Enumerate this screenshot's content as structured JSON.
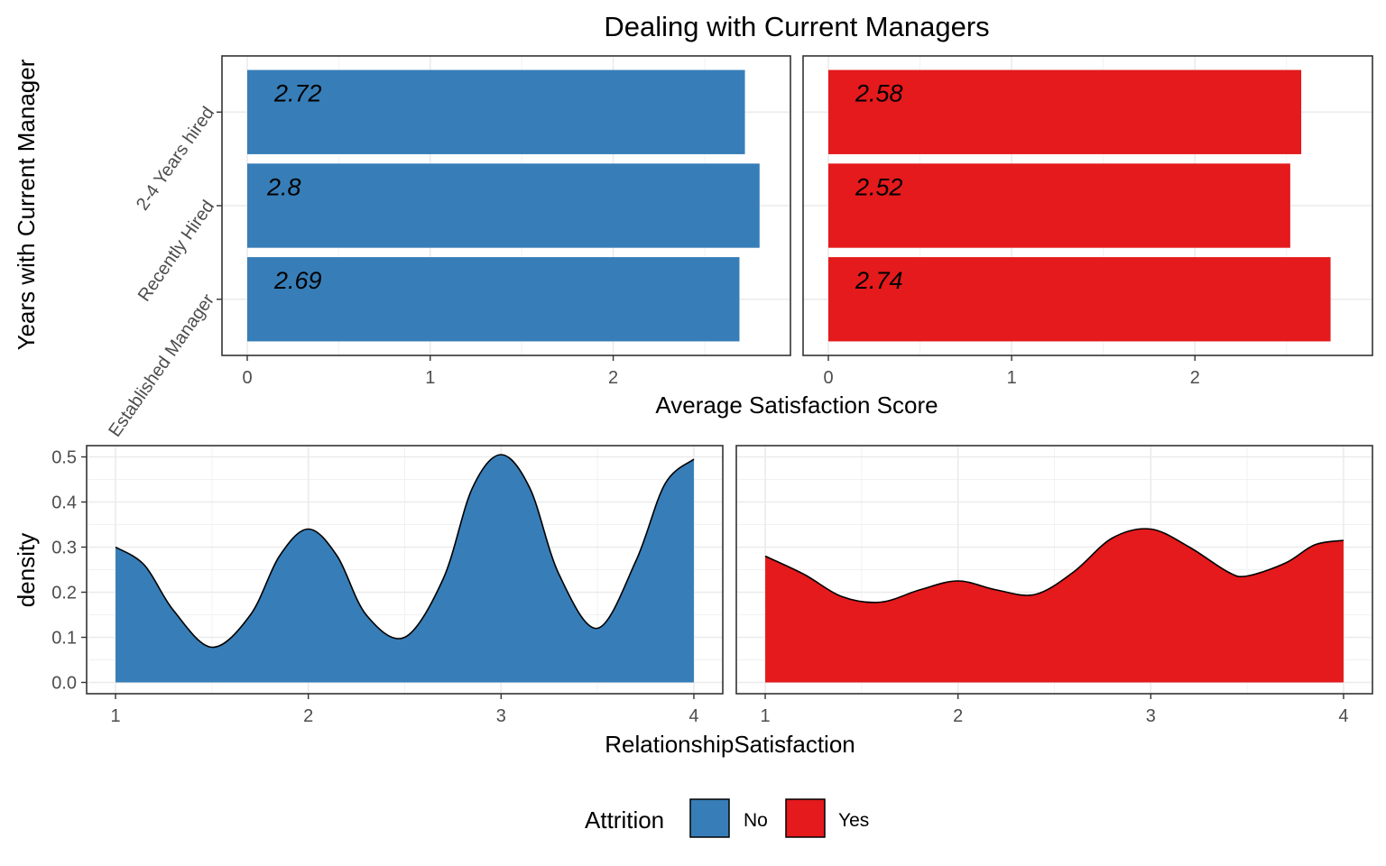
{
  "chart_data": [
    {
      "type": "bar",
      "orientation": "horizontal",
      "title": "Dealing with Current Managers",
      "xlabel": "Average Satisfaction Score",
      "ylabel": "Years with Current Manager",
      "categories": [
        "Established Manager",
        "Recently Hired",
        "2-4 Years hired"
      ],
      "xlim": [
        0,
        2.88
      ],
      "xticks": [
        0,
        1,
        2
      ],
      "grid": true,
      "panels": [
        {
          "group": "No",
          "color": "#377eb8",
          "values": [
            2.69,
            2.8,
            2.72
          ],
          "labels": [
            "2.69",
            "2.8",
            "2.72"
          ]
        },
        {
          "group": "Yes",
          "color": "#e41a1c",
          "values": [
            2.74,
            2.52,
            2.58
          ],
          "labels": [
            "2.74",
            "2.52",
            "2.58"
          ]
        }
      ]
    },
    {
      "type": "area",
      "xlabel": "RelationshipSatisfaction",
      "ylabel": "density",
      "xlim": [
        0.85,
        4.15
      ],
      "ylim": [
        -0.025,
        0.525
      ],
      "xticks": [
        1,
        2,
        3,
        4
      ],
      "yticks": [
        "0.0",
        "0.1",
        "0.2",
        "0.3",
        "0.4",
        "0.5"
      ],
      "grid": true,
      "panels": [
        {
          "group": "No",
          "color": "#377eb8",
          "points": [
            [
              1.0,
              0.3
            ],
            [
              1.15,
              0.26
            ],
            [
              1.3,
              0.16
            ],
            [
              1.5,
              0.078
            ],
            [
              1.7,
              0.15
            ],
            [
              1.85,
              0.28
            ],
            [
              2.0,
              0.34
            ],
            [
              2.15,
              0.28
            ],
            [
              2.3,
              0.15
            ],
            [
              2.5,
              0.1
            ],
            [
              2.7,
              0.23
            ],
            [
              2.85,
              0.43
            ],
            [
              3.0,
              0.505
            ],
            [
              3.15,
              0.43
            ],
            [
              3.3,
              0.24
            ],
            [
              3.5,
              0.12
            ],
            [
              3.7,
              0.27
            ],
            [
              3.85,
              0.44
            ],
            [
              4.0,
              0.495
            ]
          ]
        },
        {
          "group": "Yes",
          "color": "#e41a1c",
          "points": [
            [
              1.0,
              0.28
            ],
            [
              1.2,
              0.24
            ],
            [
              1.4,
              0.19
            ],
            [
              1.6,
              0.178
            ],
            [
              1.8,
              0.205
            ],
            [
              2.0,
              0.225
            ],
            [
              2.2,
              0.205
            ],
            [
              2.4,
              0.195
            ],
            [
              2.6,
              0.245
            ],
            [
              2.8,
              0.32
            ],
            [
              3.0,
              0.34
            ],
            [
              3.2,
              0.3
            ],
            [
              3.4,
              0.245
            ],
            [
              3.5,
              0.236
            ],
            [
              3.7,
              0.265
            ],
            [
              3.85,
              0.305
            ],
            [
              4.0,
              0.315
            ]
          ]
        }
      ]
    }
  ],
  "legend": {
    "title": "Attrition",
    "placement": "bottom",
    "items": [
      {
        "label": "No",
        "color": "#377eb8"
      },
      {
        "label": "Yes",
        "color": "#e41a1c"
      }
    ]
  }
}
